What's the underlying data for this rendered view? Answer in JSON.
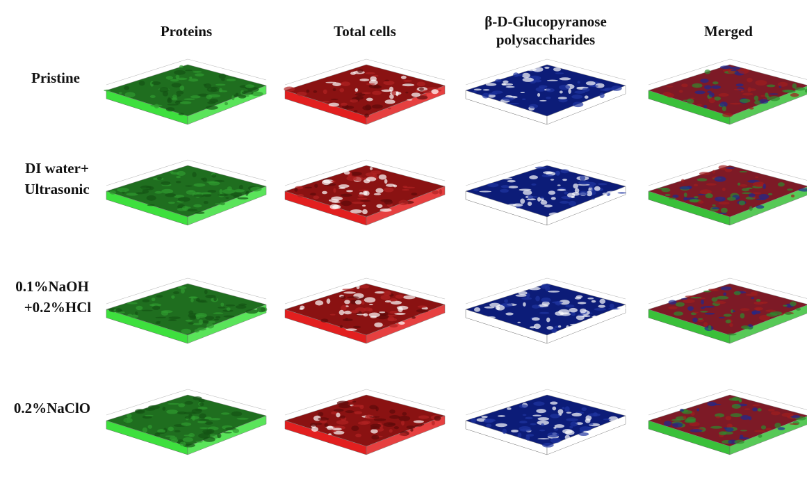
{
  "header": {
    "columns": [
      [
        "Proteins"
      ],
      [
        "Total cells"
      ],
      [
        "β-D-Glucopyranose",
        "polysaccharides"
      ],
      [
        "Merged"
      ]
    ]
  },
  "rows": [
    [
      "Pristine"
    ],
    [
      "DI water+",
      "Ultrasonic"
    ],
    [
      "0.1%NaOH",
      "+0.2%HCl"
    ],
    [
      "0.2%NaClO"
    ]
  ]
}
